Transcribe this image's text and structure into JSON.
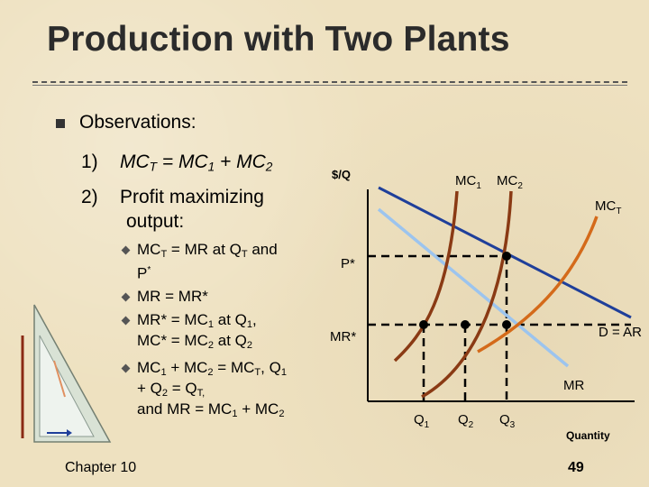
{
  "title": "Production with Two Plants",
  "observations_label": "Observations:",
  "item1": {
    "num": "1)",
    "mc_t": "MC",
    "mc_t_sub": "T",
    "eq": " = MC",
    "s1": "1",
    "plus": " + MC",
    "s2": "2"
  },
  "item2": {
    "num": "2)",
    "line1": "Profit maximizing",
    "line2": "output:"
  },
  "sub1": {
    "a": "MC",
    "a_sub": "T",
    "b": " = MR at Q",
    "b_sub": "T",
    "c": " and",
    "line2": "P",
    "line2_sup": "*"
  },
  "sub2": {
    "text": "MR = MR*"
  },
  "sub3": {
    "a": "MR* = MC",
    "a_sub": "1",
    "b": " at Q",
    "b_sub": "1",
    "c": ",",
    "line2a": "MC* = MC",
    "line2a_sub": "2",
    "line2b": " at Q",
    "line2b_sub": "2"
  },
  "sub4": {
    "a": "MC",
    "a_sub": "1",
    "b": " + MC",
    "b_sub": "2",
    "c": " = MC",
    "c_sub": "T",
    "d": ", Q",
    "d_sub": "1",
    "line2a": "+ Q",
    "line2a_sub": "2",
    "line2b": " = Q",
    "line2b_sub": "T,",
    "line3a": "and MR = MC",
    "line3a_sub": "1",
    "line3b": " + MC",
    "line3b_sub": "2"
  },
  "footer": "Chapter 10",
  "page_number": "49",
  "graph": {
    "y_label": "$/Q",
    "x_label": "Quantity",
    "mc1": "MC",
    "mc1_sub": "1",
    "mc2": "MC",
    "mc2_sub": "2",
    "mct": "MC",
    "mct_sub": "T",
    "p_star": "P*",
    "mr_star": "MR*",
    "d_ar": "D = AR",
    "mr": "MR",
    "q1": "Q",
    "q1_sub": "1",
    "q2": "Q",
    "q2_sub": "2",
    "q3": "Q",
    "q3_sub": "3"
  },
  "colors": {
    "mc_curves": "#8a3a14",
    "mct_curve": "#d46a1a",
    "demand": "#1f3f9a",
    "mr_line": "#9cc4ee"
  }
}
